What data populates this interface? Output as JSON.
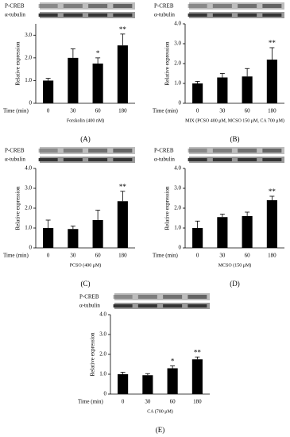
{
  "chart_data": [
    {
      "type": "bar",
      "panel_label": "(A)",
      "blot_labels": [
        "P-CREB",
        "α-tubulin"
      ],
      "ylabel": "Relative expression",
      "x_axis_label": "Time (min)",
      "xlabel": "Forskolin (400 nM)",
      "categories": [
        "0",
        "30",
        "60",
        "180"
      ],
      "values": [
        1.0,
        2.0,
        1.75,
        2.55
      ],
      "errors": [
        0.1,
        0.4,
        0.25,
        0.5
      ],
      "significance": [
        null,
        null,
        "*",
        "**"
      ],
      "color": "#000000",
      "ylim": [
        0,
        3.5
      ],
      "yticks": [
        0,
        {
          "value": 1,
          "label": "1.0"
        },
        {
          "value": 2,
          "label": "2.0"
        },
        {
          "value": 3,
          "label": "3.0"
        }
      ]
    },
    {
      "type": "bar",
      "panel_label": "(B)",
      "blot_labels": [
        "P-CREB",
        "α-tubulin"
      ],
      "ylabel": "Relative expression",
      "x_axis_label": "Time (min)",
      "xlabel": "MIX (PCSO 400 μM, MCSO 150 μM, CA 700 μM)",
      "categories": [
        "0",
        "30",
        "60",
        "180"
      ],
      "values": [
        1.0,
        1.3,
        1.35,
        2.2
      ],
      "errors": [
        0.1,
        0.2,
        0.4,
        0.6
      ],
      "significance": [
        null,
        null,
        null,
        "**"
      ],
      "color": "#000000",
      "ylim": [
        0,
        4
      ],
      "yticks": [
        0,
        {
          "value": 1,
          "label": "1.0"
        },
        {
          "value": 2,
          "label": "2.0"
        },
        {
          "value": 3,
          "label": "3.0"
        },
        {
          "value": 4,
          "label": "4.0"
        }
      ]
    },
    {
      "type": "bar",
      "panel_label": "(C)",
      "blot_labels": [
        "P-CREB",
        "α-tubulin"
      ],
      "ylabel": "Relative expression",
      "x_axis_label": "Time (min)",
      "xlabel": "PCSO (400 μM)",
      "categories": [
        "0",
        "30",
        "60",
        "180"
      ],
      "values": [
        1.0,
        0.95,
        1.4,
        2.35
      ],
      "errors": [
        0.4,
        0.15,
        0.5,
        0.5
      ],
      "significance": [
        null,
        null,
        null,
        "**"
      ],
      "color": "#000000",
      "ylim": [
        0,
        4
      ],
      "yticks": [
        0,
        {
          "value": 1,
          "label": "1.0"
        },
        {
          "value": 2,
          "label": "2.0"
        },
        {
          "value": 3,
          "label": "3.0"
        },
        {
          "value": 4,
          "label": "4.0"
        }
      ]
    },
    {
      "type": "bar",
      "panel_label": "(D)",
      "blot_labels": [
        "P-CREB",
        "α-tubulin"
      ],
      "ylabel": "Relative expression",
      "x_axis_label": "Time (min)",
      "xlabel": "MCSO (150 μM)",
      "categories": [
        "0",
        "30",
        "60",
        "180"
      ],
      "values": [
        1.0,
        1.55,
        1.6,
        2.4
      ],
      "errors": [
        0.35,
        0.15,
        0.2,
        0.2
      ],
      "significance": [
        null,
        null,
        null,
        "**"
      ],
      "color": "#000000",
      "ylim": [
        0,
        4
      ],
      "yticks": [
        0,
        {
          "value": 1,
          "label": "1.0"
        },
        {
          "value": 2,
          "label": "2.0"
        },
        {
          "value": 3,
          "label": "3.0"
        },
        {
          "value": 4,
          "label": "4.0"
        }
      ]
    },
    {
      "type": "bar",
      "panel_label": "(E)",
      "blot_labels": [
        "P-CREB",
        "α-tubulin"
      ],
      "ylabel": "Relative expression",
      "x_axis_label": "Time (min)",
      "xlabel": "CA (700 μM)",
      "categories": [
        "0",
        "30",
        "60",
        "180"
      ],
      "values": [
        1.0,
        0.95,
        1.3,
        1.75
      ],
      "errors": [
        0.1,
        0.08,
        0.12,
        0.12
      ],
      "significance": [
        null,
        null,
        "*",
        "**"
      ],
      "color": "#000000",
      "ylim": [
        0,
        4
      ],
      "yticks": [
        0,
        {
          "value": 1,
          "label": "1.0"
        },
        {
          "value": 2,
          "label": "2.0"
        },
        {
          "value": 3,
          "label": "3.0"
        },
        {
          "value": 4,
          "label": "4.0"
        }
      ]
    }
  ]
}
